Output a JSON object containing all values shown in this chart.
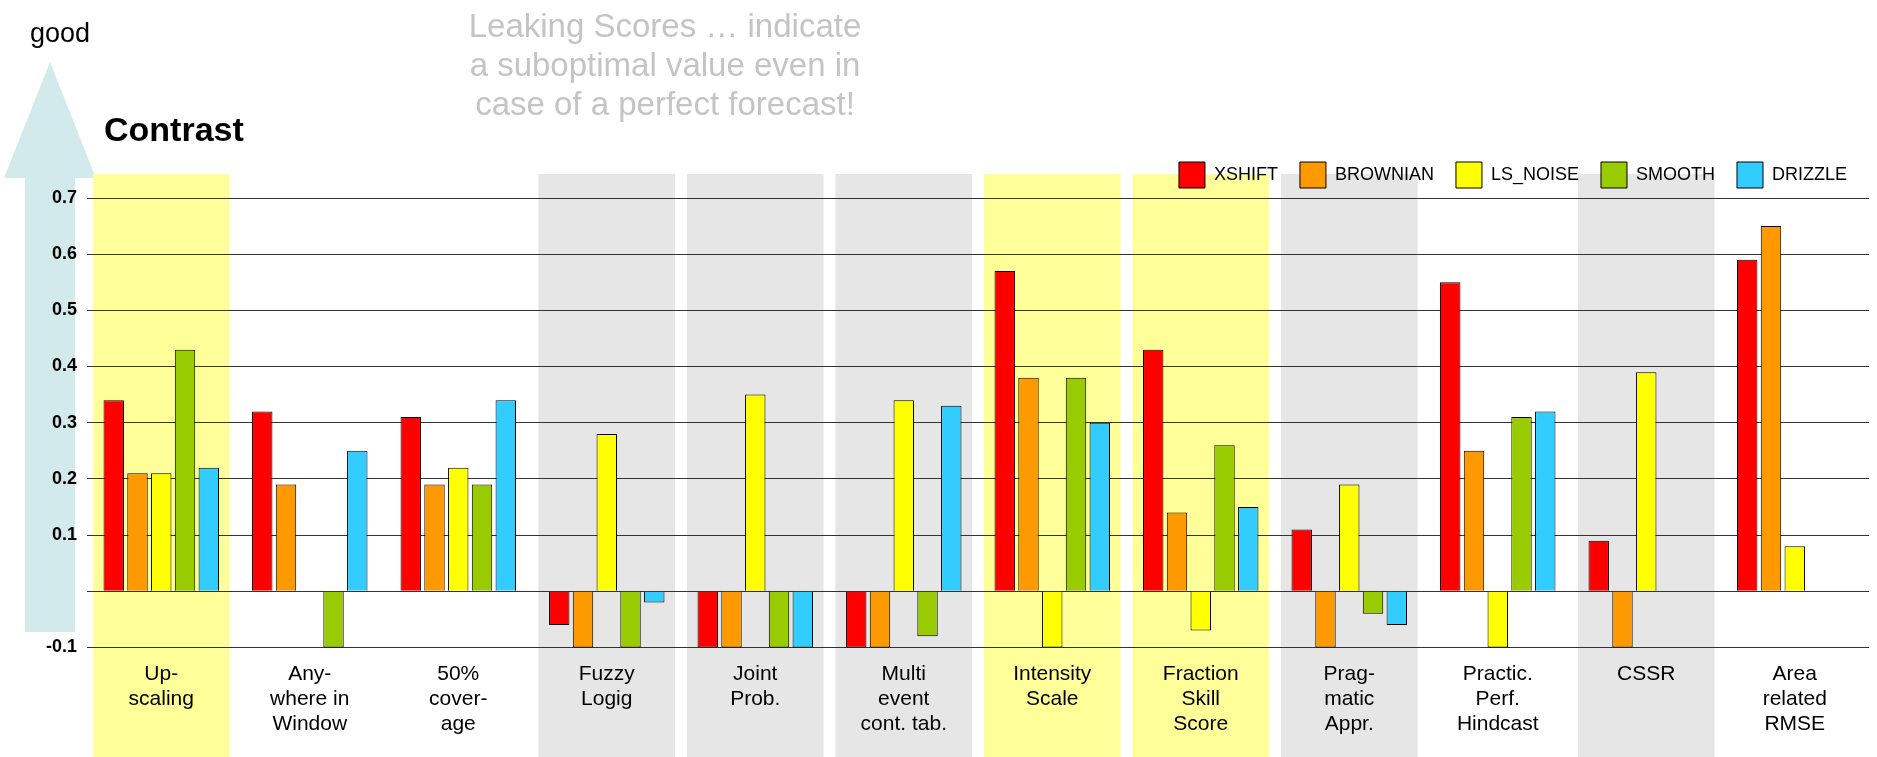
{
  "chart_data": {
    "type": "bar",
    "title": "Contrast",
    "categories": [
      "Up-\nscaling",
      "Any-\nwhere in\nWindow",
      "50%\ncover-\nage",
      "Fuzzy\nLogig",
      "Joint\nProb.",
      "Multi\nevent\ncont. tab.",
      "Intensity\nScale",
      "Fraction\nSkill\nScore",
      "Prag-\nmatic\nAppr.",
      "Practic.\nPerf.\nHindcast",
      "CSSR",
      "Area\nrelated\nRMSE"
    ],
    "series": [
      {
        "name": "XSHIFT",
        "color": "#ff0000",
        "values": [
          0.34,
          0.32,
          0.31,
          -0.06,
          -0.1,
          -0.1,
          0.57,
          0.43,
          0.11,
          0.55,
          0.09,
          0.59
        ]
      },
      {
        "name": "BROWNIAN",
        "color": "#ff9900",
        "values": [
          0.21,
          0.19,
          0.19,
          -0.1,
          -0.1,
          -0.1,
          0.38,
          0.14,
          -0.1,
          0.25,
          -0.1,
          0.65
        ]
      },
      {
        "name": "LS_NOISE",
        "color": "#ffff00",
        "values": [
          0.21,
          null,
          0.22,
          0.28,
          0.35,
          0.34,
          -0.1,
          -0.07,
          0.19,
          -0.1,
          0.39,
          0.08
        ]
      },
      {
        "name": "SMOOTH",
        "color": "#99cc00",
        "values": [
          0.43,
          -0.1,
          0.19,
          -0.1,
          -0.1,
          -0.08,
          0.38,
          0.26,
          -0.04,
          0.31,
          null,
          null
        ]
      },
      {
        "name": "DRIZZLE",
        "color": "#33ccff",
        "values": [
          0.22,
          0.25,
          0.34,
          -0.02,
          -0.1,
          0.33,
          0.3,
          0.15,
          -0.06,
          0.32,
          null,
          null
        ]
      }
    ],
    "ylim": [
      -0.1,
      0.7
    ],
    "yticks": [
      -0.1,
      {
        "value": 0,
        "label": null
      },
      0.1,
      0.2,
      0.3,
      0.4,
      0.5,
      0.6,
      0.7
    ],
    "grid": "y",
    "legend": "top right",
    "bands": [
      {
        "axis": "x",
        "from": "Up-\nscaling",
        "to": "Up-\nscaling",
        "color": "#ffff99"
      },
      {
        "axis": "x",
        "from": "Fuzzy\nLogig",
        "to": "Fuzzy\nLogig",
        "color": "#e6e6e6"
      },
      {
        "axis": "x",
        "from": "Joint\nProb.",
        "to": "Joint\nProb.",
        "color": "#e6e6e6"
      },
      {
        "axis": "x",
        "from": "Multi\nevent\ncont. tab.",
        "to": "Multi\nevent\ncont. tab.",
        "color": "#e6e6e6"
      },
      {
        "axis": "x",
        "from": "Intensity\nScale",
        "to": "Intensity\nScale",
        "color": "#ffff99"
      },
      {
        "axis": "x",
        "from": "Fraction\nSkill\nScore",
        "to": "Fraction\nSkill\nScore",
        "color": "#ffff99"
      },
      {
        "axis": "x",
        "from": "Prag-\nmatic\nAppr.",
        "to": "Prag-\nmatic\nAppr.",
        "color": "#e6e6e6"
      },
      {
        "axis": "x",
        "from": "CSSR",
        "to": "CSSR",
        "color": "#e6e6e6"
      }
    ],
    "annotations": [
      "good",
      "Leaking Scores … indicate a suboptimal value even in case of a perfect forecast!"
    ]
  }
}
